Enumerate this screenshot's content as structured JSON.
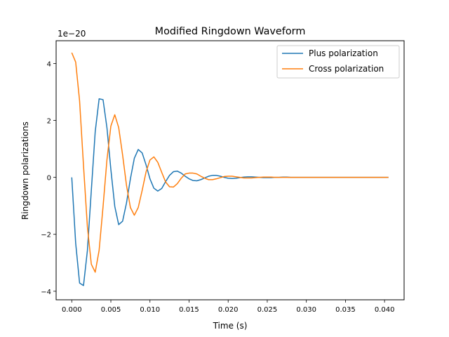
{
  "chart_data": {
    "type": "line",
    "title": "Modified Ringdown Waveform",
    "xlabel": "Time (s)",
    "ylabel": "Ringdown polarizations",
    "offset_label": "1e−20",
    "xlim": [
      -0.002,
      0.0425
    ],
    "ylim": [
      -4.3,
      4.8
    ],
    "x_ticks": [
      0.0,
      0.005,
      0.01,
      0.015,
      0.02,
      0.025,
      0.03,
      0.035,
      0.04
    ],
    "x_tick_labels": [
      "0.000",
      "0.005",
      "0.010",
      "0.015",
      "0.020",
      "0.025",
      "0.030",
      "0.035",
      "0.040"
    ],
    "y_ticks": [
      -4,
      -2,
      0,
      2,
      4
    ],
    "y_tick_labels": [
      "−4",
      "−2",
      "0",
      "2",
      "4"
    ],
    "grid": false,
    "legend_position": "top-right",
    "x_max": 0.0405,
    "series": [
      {
        "name": "Plus polarization",
        "color": "#1f77b4",
        "x": [
          0.0,
          0.0005,
          0.001,
          0.0015,
          0.002,
          0.0025,
          0.003,
          0.0035,
          0.004,
          0.0045,
          0.005,
          0.0055,
          0.006,
          0.0065,
          0.007,
          0.0075,
          0.008,
          0.0085,
          0.009,
          0.0095,
          0.01,
          0.0105,
          0.011,
          0.0115,
          0.012,
          0.0125,
          0.013,
          0.0135,
          0.014,
          0.0145,
          0.015,
          0.0155,
          0.016,
          0.0165,
          0.017,
          0.0175,
          0.018,
          0.0185,
          0.019,
          0.0195,
          0.02,
          0.0205,
          0.021,
          0.0215,
          0.022,
          0.0225,
          0.023,
          0.0235,
          0.024,
          0.0245,
          0.025,
          0.0255,
          0.026,
          0.0265,
          0.027,
          0.0275,
          0.028,
          0.0285,
          0.029,
          0.0295,
          0.03,
          0.0305,
          0.031,
          0.0315,
          0.032,
          0.0325,
          0.033,
          0.0335,
          0.034,
          0.0345,
          0.035,
          0.0355,
          0.036,
          0.0365,
          0.037,
          0.0375,
          0.038,
          0.0385,
          0.039,
          0.0395,
          0.04,
          0.0405
        ],
        "values": [
          0.0,
          -2.31,
          -3.71,
          -3.8,
          -2.57,
          -0.46,
          1.61,
          2.76,
          2.73,
          1.74,
          0.28,
          -1.02,
          -1.66,
          -1.54,
          -0.9,
          -0.05,
          0.67,
          0.98,
          0.86,
          0.44,
          -0.05,
          -0.38,
          -0.48,
          -0.39,
          -0.15,
          0.07,
          0.2,
          0.22,
          0.15,
          0.04,
          -0.05,
          -0.11,
          -0.12,
          -0.08,
          -0.02,
          0.04,
          0.07,
          0.07,
          0.04,
          0.0,
          -0.03,
          -0.04,
          -0.03,
          -0.01,
          0.01,
          0.02,
          0.02,
          0.01,
          0.0,
          -0.01,
          -0.01,
          -0.01,
          0.0,
          0.0,
          0.01,
          0.01,
          0.0,
          0.0,
          0.0,
          0.0,
          0.0,
          0.0,
          0.0,
          0.0,
          0.0,
          0.0,
          0.0,
          0.0,
          0.0,
          0.0,
          0.0,
          0.0,
          0.0,
          0.0,
          0.0,
          0.0,
          0.0,
          0.0,
          0.0,
          0.0,
          0.0,
          0.0
        ]
      },
      {
        "name": "Cross polarization",
        "color": "#ff7f0e",
        "x": [
          0.0,
          0.0005,
          0.001,
          0.0015,
          0.002,
          0.0025,
          0.003,
          0.0035,
          0.004,
          0.0045,
          0.005,
          0.0055,
          0.006,
          0.0065,
          0.007,
          0.0075,
          0.008,
          0.0085,
          0.009,
          0.0095,
          0.01,
          0.0105,
          0.011,
          0.0115,
          0.012,
          0.0125,
          0.013,
          0.0135,
          0.014,
          0.0145,
          0.015,
          0.0155,
          0.016,
          0.0165,
          0.017,
          0.0175,
          0.018,
          0.0185,
          0.019,
          0.0195,
          0.02,
          0.0205,
          0.021,
          0.0215,
          0.022,
          0.0225,
          0.023,
          0.0235,
          0.024,
          0.0245,
          0.025,
          0.0255,
          0.026,
          0.0265,
          0.027,
          0.0275,
          0.028,
          0.0285,
          0.029,
          0.0295,
          0.03,
          0.0305,
          0.031,
          0.0315,
          0.032,
          0.0325,
          0.033,
          0.0335,
          0.034,
          0.0345,
          0.035,
          0.0355,
          0.036,
          0.0365,
          0.037,
          0.0375,
          0.038,
          0.0385,
          0.039,
          0.0395,
          0.04,
          0.0405
        ],
        "values": [
          4.38,
          4.05,
          2.69,
          0.42,
          -1.74,
          -3.05,
          -3.33,
          -2.56,
          -1.03,
          0.62,
          1.8,
          2.2,
          1.75,
          0.79,
          -0.28,
          -1.06,
          -1.33,
          -1.06,
          -0.46,
          0.19,
          0.61,
          0.72,
          0.53,
          0.18,
          -0.16,
          -0.33,
          -0.34,
          -0.22,
          -0.03,
          0.12,
          0.15,
          0.15,
          0.12,
          0.04,
          -0.03,
          -0.08,
          -0.08,
          -0.05,
          -0.01,
          0.03,
          0.04,
          0.04,
          0.02,
          0.0,
          -0.02,
          -0.02,
          -0.02,
          -0.01,
          0.0,
          0.01,
          0.01,
          0.01,
          0.0,
          0.0,
          0.0,
          0.0,
          0.0,
          0.0,
          0.0,
          0.0,
          0.0,
          0.0,
          0.0,
          0.0,
          0.0,
          0.0,
          0.0,
          0.0,
          0.0,
          0.0,
          0.0,
          0.0,
          0.0,
          0.0,
          0.0,
          0.0,
          0.0,
          0.0,
          0.0,
          0.0,
          0.0,
          0.0
        ]
      }
    ]
  }
}
